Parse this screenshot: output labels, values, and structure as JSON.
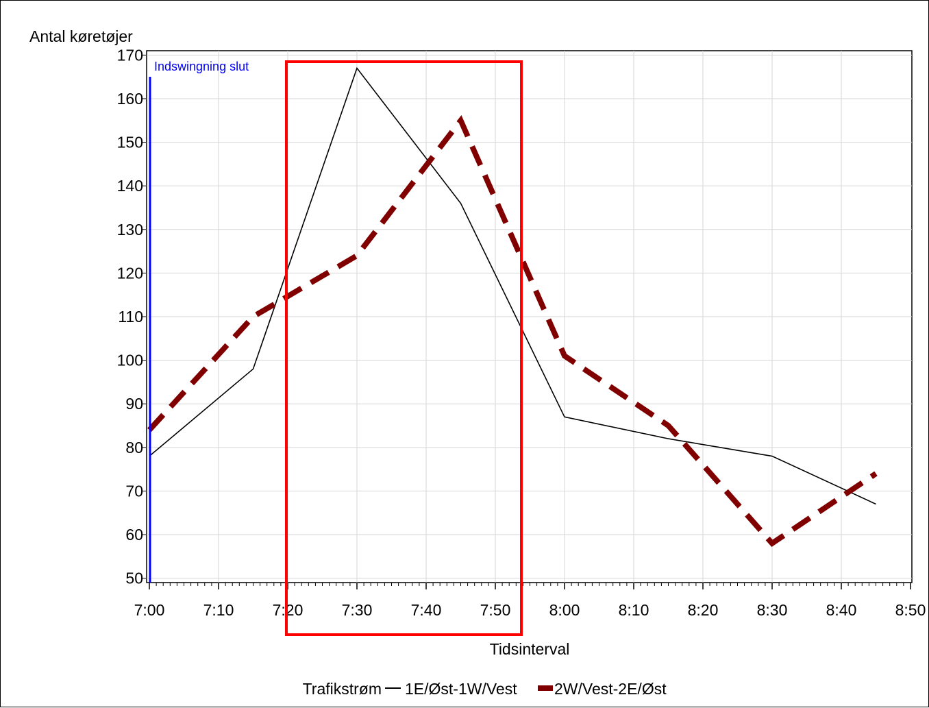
{
  "chart_data": {
    "type": "line",
    "ylabel": "Antal køretøjer",
    "xlabel": "Tidsinterval",
    "x_ticks": [
      "7:00",
      "7:10",
      "7:20",
      "7:30",
      "7:40",
      "7:50",
      "8:00",
      "8:10",
      "8:20",
      "8:30",
      "8:40",
      "8:50"
    ],
    "y_ticks": [
      50,
      60,
      70,
      80,
      90,
      100,
      110,
      120,
      130,
      140,
      150,
      160,
      170
    ],
    "ylim": [
      49,
      171
    ],
    "xlim_minutes": [
      0,
      110
    ],
    "x": [
      "7:00",
      "7:15",
      "7:30",
      "7:45",
      "8:00",
      "8:15",
      "8:30",
      "8:45"
    ],
    "series": [
      {
        "name": "1E/Øst-1W/Vest",
        "values": [
          78,
          98,
          167,
          136,
          87,
          82,
          78,
          67
        ],
        "color": "#000000",
        "style": "solid"
      },
      {
        "name": "2W/Vest-2E/Øst",
        "values": [
          84,
          110,
          124,
          155,
          101,
          85,
          58,
          74
        ],
        "color": "#800000",
        "style": "dashed"
      }
    ],
    "annotation": {
      "text": "Indswingning slut",
      "x": "7:00",
      "color": "#0000ff"
    },
    "highlight_box": {
      "color": "#ff0000"
    },
    "legend": {
      "title": "Trafikstrøm",
      "placement": "bottom"
    },
    "grid": true
  }
}
